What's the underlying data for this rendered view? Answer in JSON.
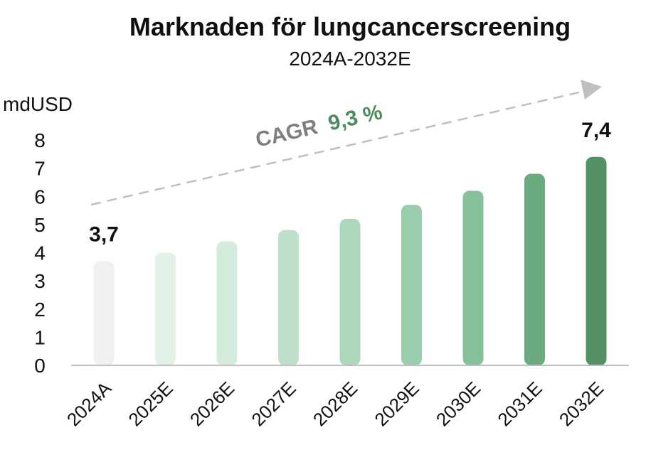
{
  "chart_data": {
    "type": "bar",
    "title": "Marknaden för lungcancerscreening",
    "subtitle": "2024A-2032E",
    "ylabel": "mdUSD",
    "ylim": [
      0,
      8
    ],
    "yticks": [
      0,
      1,
      2,
      3,
      4,
      5,
      6,
      7,
      8
    ],
    "categories": [
      "2024A",
      "2025E",
      "2026E",
      "2027E",
      "2028E",
      "2029E",
      "2030E",
      "2031E",
      "2032E"
    ],
    "values": [
      3.7,
      4.0,
      4.4,
      4.8,
      5.2,
      5.7,
      6.2,
      6.8,
      7.4
    ],
    "data_labels": [
      {
        "index": 0,
        "text": "3,7"
      },
      {
        "index": 8,
        "text": "7,4"
      }
    ],
    "annotation": {
      "prefix": "CAGR",
      "value": "9,3 %"
    },
    "grid": false,
    "colors": [
      "#f0f0f0",
      "#e2f2e7",
      "#d2ebda",
      "#bfe1cb",
      "#add7bb",
      "#9acdab",
      "#86c19a",
      "#6aab7f",
      "#559063"
    ],
    "annotation_colors": {
      "prefix": "#7f7f7f",
      "value": "#4e8a5e",
      "arrow": "#bfbfbf"
    }
  }
}
